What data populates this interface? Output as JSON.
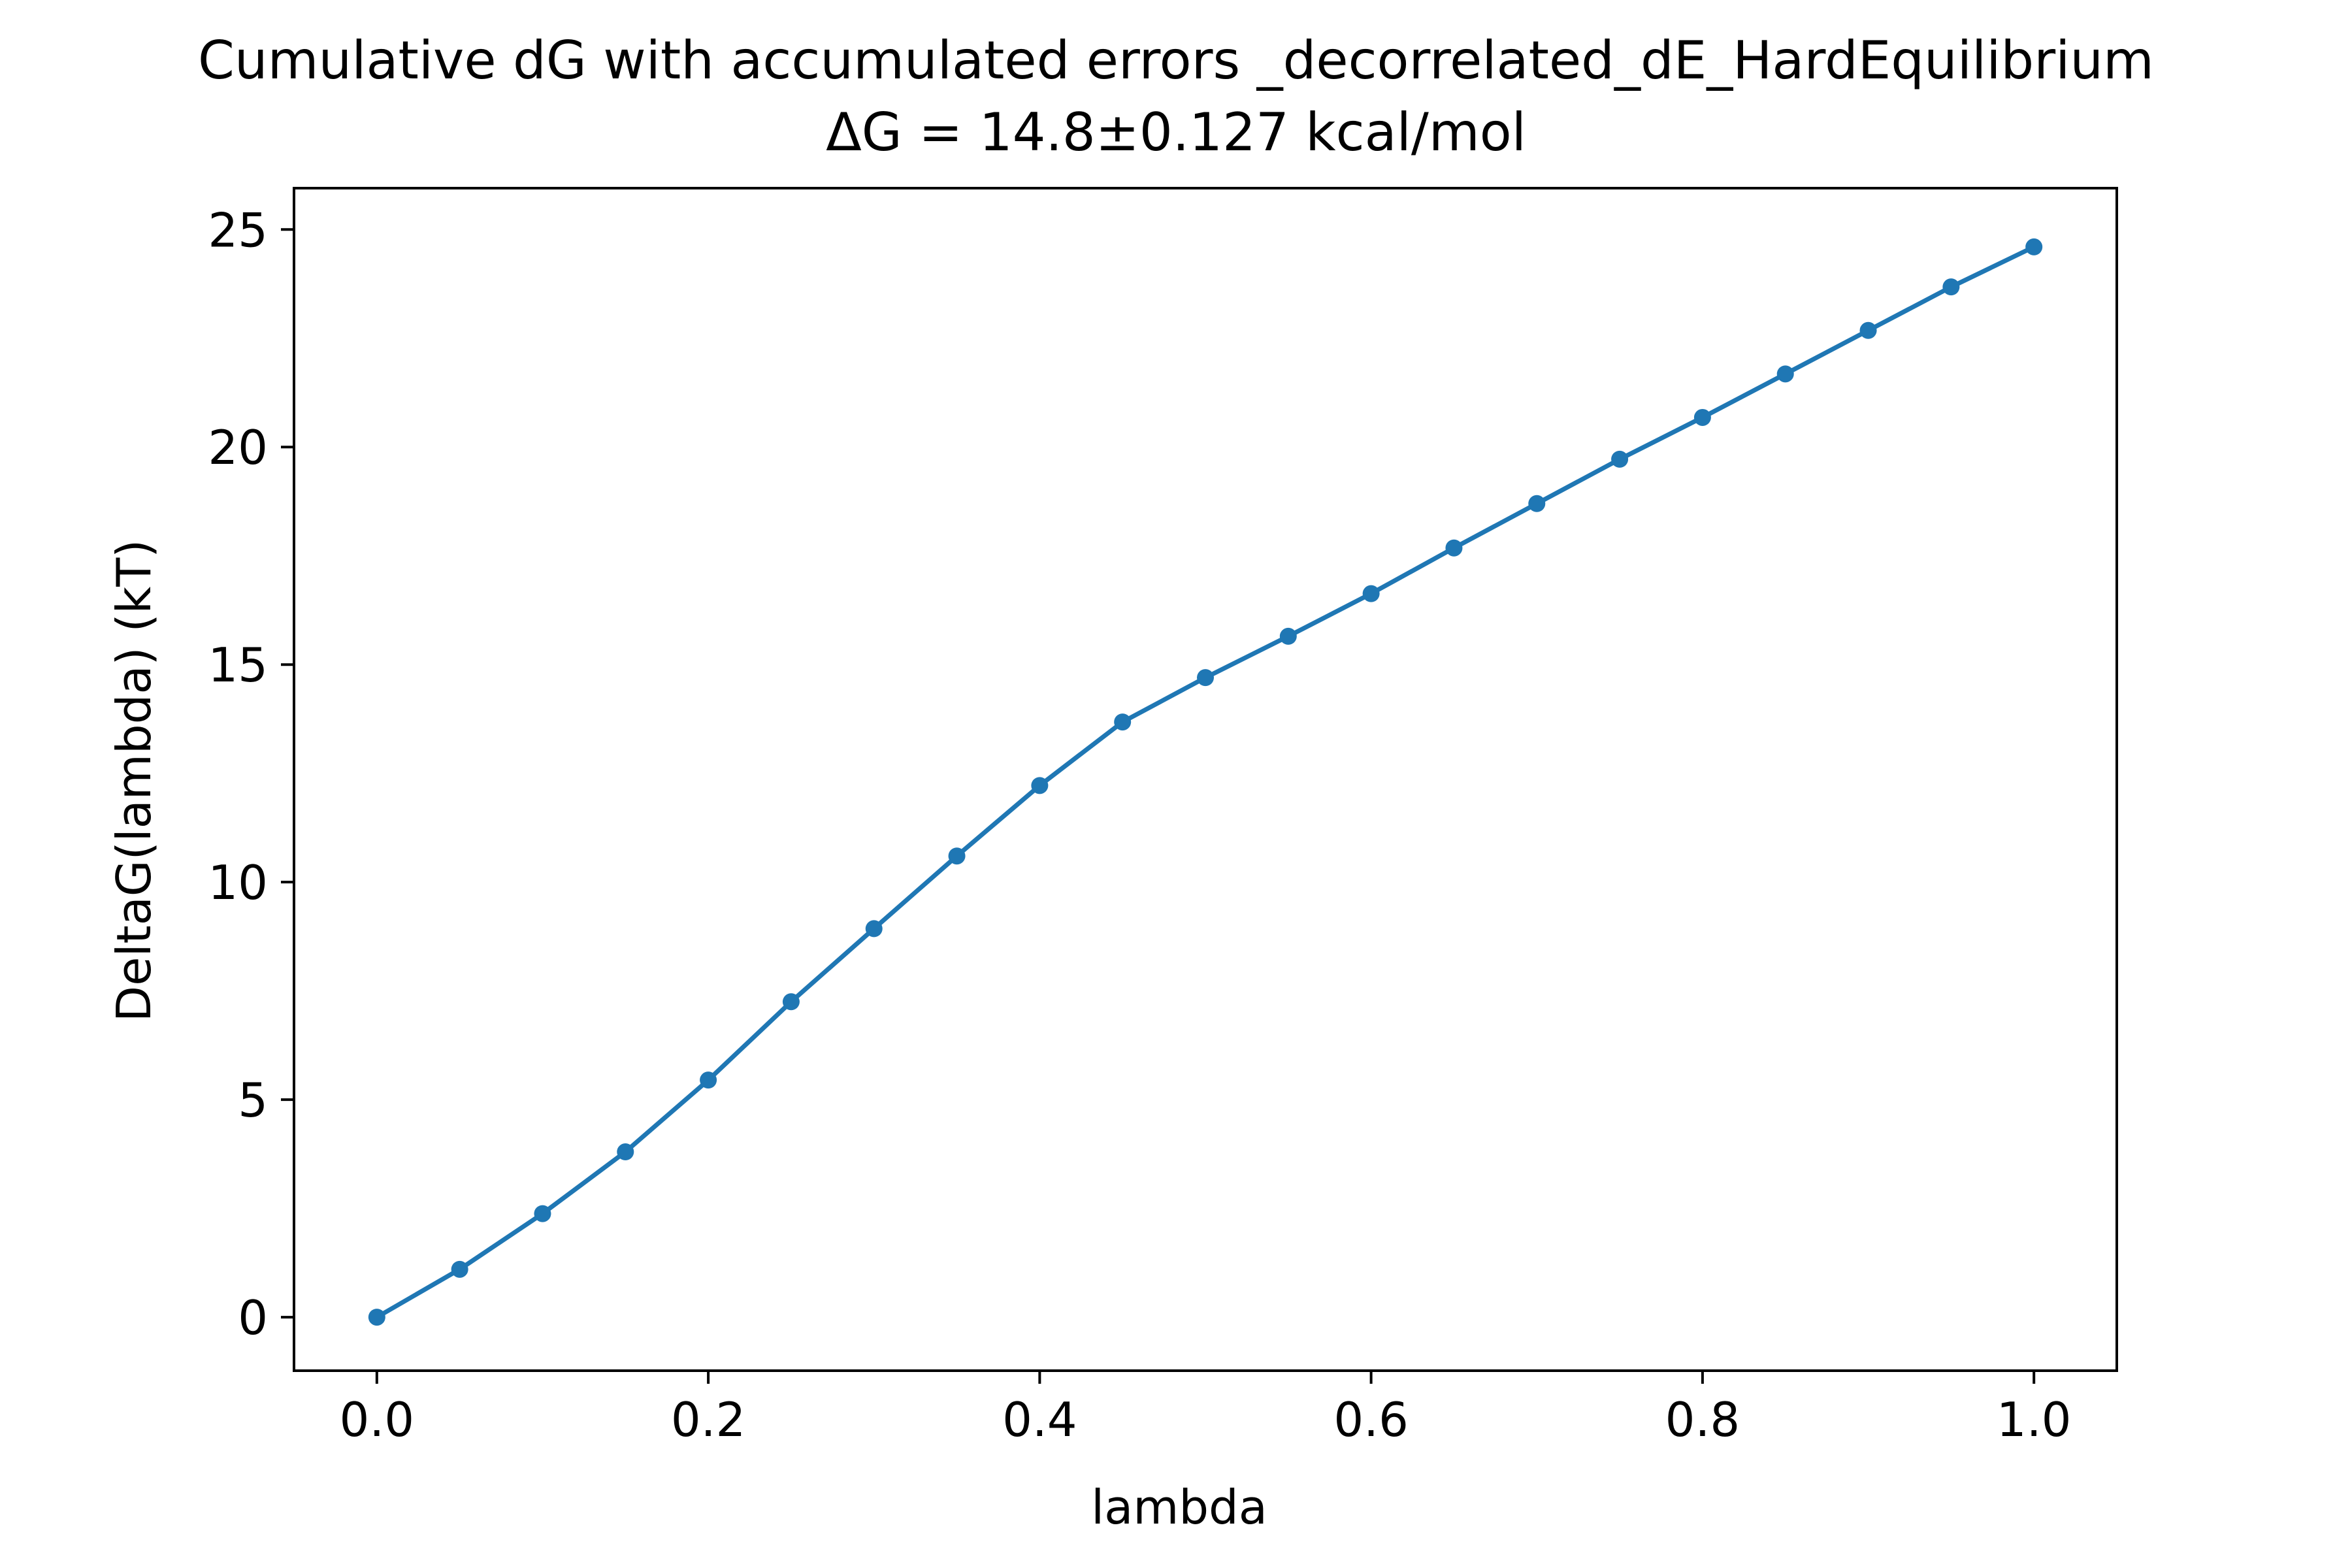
{
  "chart_data": {
    "type": "line",
    "title": "Cumulative dG with accumulated errors _decorrelated_dE_HardEquilibrium",
    "subtitle": "ΔG = 14.8±0.127 kcal/mol",
    "xlabel": "lambda",
    "ylabel": "DeltaG(lambda) (kT)",
    "xlim": [
      -0.05,
      1.05
    ],
    "ylim": [
      -1.23,
      25.95
    ],
    "xticks": [
      0.0,
      0.2,
      0.4,
      0.6,
      0.8,
      1.0
    ],
    "xtick_labels": [
      "0.0",
      "0.2",
      "0.4",
      "0.6",
      "0.8",
      "1.0"
    ],
    "yticks": [
      0,
      5,
      10,
      15,
      20,
      25
    ],
    "ytick_labels": [
      "0",
      "5",
      "10",
      "15",
      "20",
      "25"
    ],
    "grid": false,
    "legend": "none",
    "series": [
      {
        "color": "#1f77b4",
        "marker": "circle",
        "x": [
          0.0,
          0.05,
          0.1,
          0.15,
          0.2,
          0.25,
          0.3,
          0.35,
          0.4,
          0.45,
          0.5,
          0.55,
          0.6,
          0.65,
          0.7,
          0.75,
          0.8,
          0.85,
          0.9,
          0.95,
          1.0
        ],
        "y": [
          0.0,
          1.1,
          2.38,
          3.8,
          5.45,
          7.25,
          8.93,
          10.6,
          12.22,
          13.68,
          14.7,
          15.65,
          16.63,
          17.68,
          18.7,
          19.72,
          20.68,
          21.68,
          22.68,
          23.68,
          24.6
        ]
      }
    ]
  }
}
